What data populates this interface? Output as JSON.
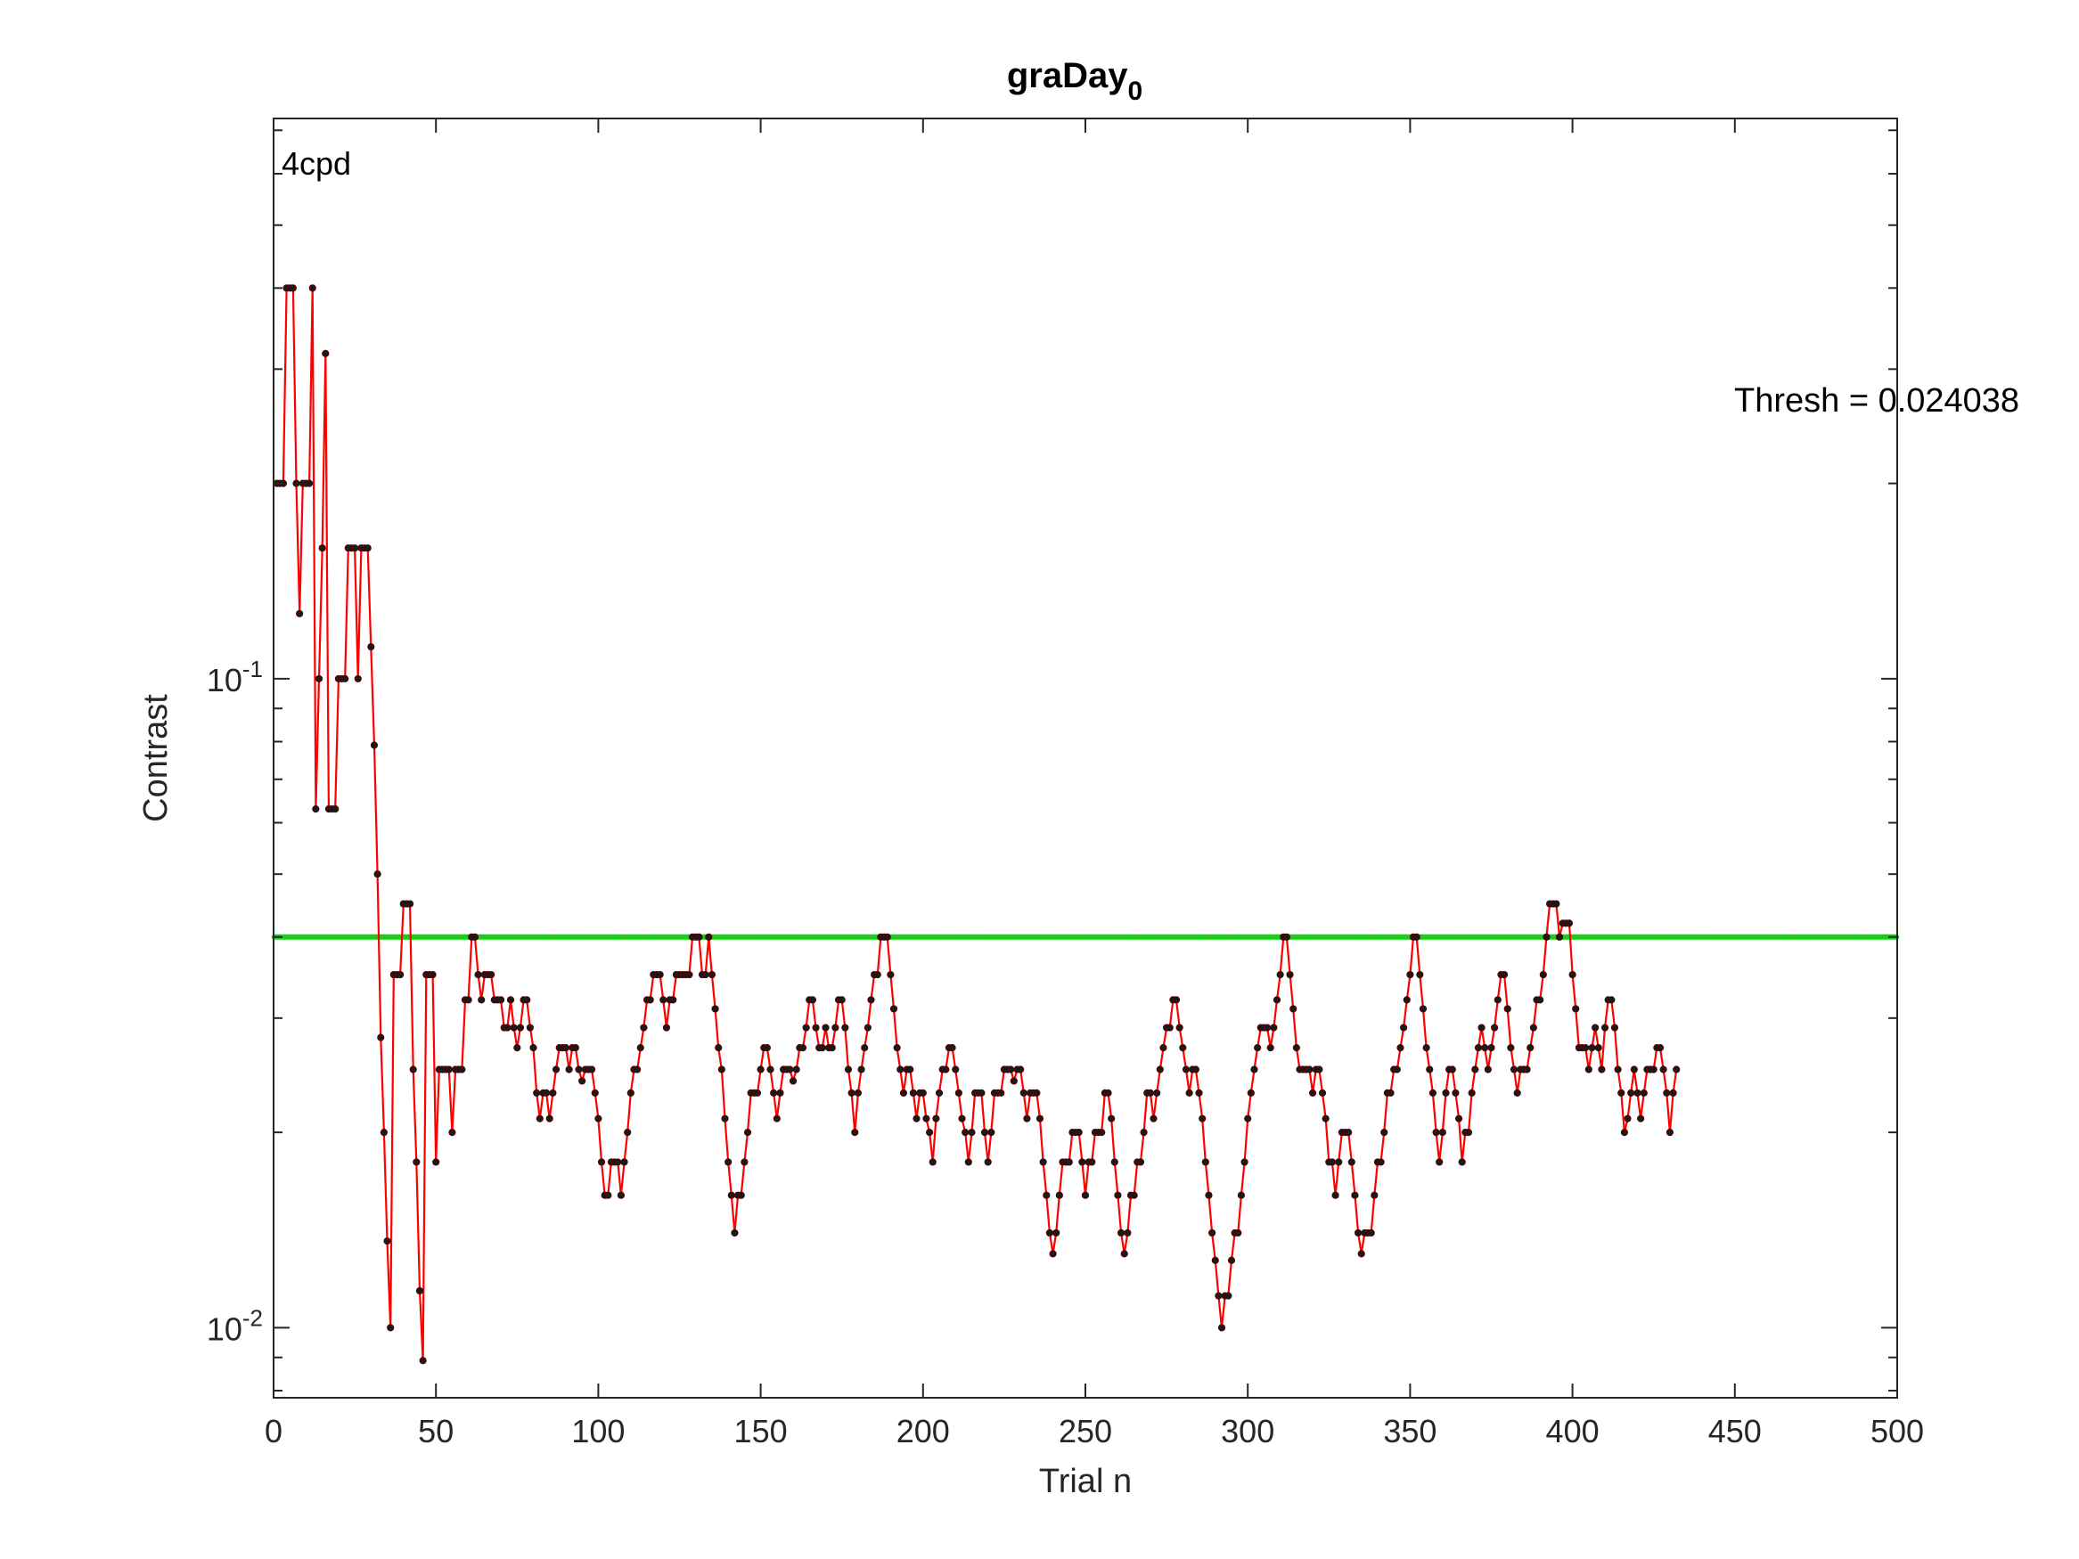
{
  "chart_data": {
    "type": "line",
    "title": "graDay",
    "title_subscript": "0",
    "xlabel": "Trial n",
    "ylabel": "Contrast",
    "annotation": "4cpd",
    "thresh_label": "Thresh = 0.024038",
    "xlim": [
      0,
      500
    ],
    "ylim": [
      0.0078,
      0.73
    ],
    "yscale": "log",
    "xticks": [
      0,
      50,
      100,
      150,
      200,
      250,
      300,
      350,
      400,
      450,
      500
    ],
    "xtick_labels": [
      "0",
      "50",
      "100",
      "150",
      "200",
      "250",
      "300",
      "350",
      "400",
      "450",
      "500"
    ],
    "yticks": [
      0.1,
      0.01
    ],
    "ytick_labels": [
      {
        "base": "10",
        "exp": "-1"
      },
      {
        "base": "10",
        "exp": "-2"
      }
    ],
    "grid": false,
    "colors": {
      "staircase_line": "#ff0000",
      "staircase_marker": "#1a1a1a",
      "threshold_line": "#00e000",
      "threshold_marker": "#33bb33"
    },
    "threshold_level": 0.04,
    "series": [
      {
        "values": [
          0.2,
          0.2,
          0.2,
          0.4,
          0.4,
          0.4,
          0.2,
          0.126,
          0.2,
          0.2,
          0.2,
          0.4,
          0.063,
          0.1,
          0.159,
          0.317,
          0.063,
          0.063,
          0.063,
          0.1,
          0.1,
          0.1,
          0.159,
          0.159,
          0.159,
          0.1,
          0.159,
          0.159,
          0.159,
          0.112,
          0.079,
          0.05,
          0.028,
          0.02,
          0.0136,
          0.01,
          0.035,
          0.035,
          0.035,
          0.045,
          0.045,
          0.045,
          0.025,
          0.018,
          0.0114,
          0.0089,
          0.035,
          0.035,
          0.035,
          0.018,
          0.025,
          0.025,
          0.025,
          0.025,
          0.02,
          0.025,
          0.025,
          0.025,
          0.032,
          0.032,
          0.04,
          0.04,
          0.035,
          0.032,
          0.035,
          0.035,
          0.035,
          0.032,
          0.032,
          0.032,
          0.029,
          0.029,
          0.032,
          0.029,
          0.027,
          0.029,
          0.032,
          0.032,
          0.029,
          0.027,
          0.023,
          0.021,
          0.023,
          0.023,
          0.021,
          0.023,
          0.025,
          0.027,
          0.027,
          0.027,
          0.025,
          0.027,
          0.027,
          0.025,
          0.024,
          0.025,
          0.025,
          0.025,
          0.023,
          0.021,
          0.018,
          0.016,
          0.016,
          0.018,
          0.018,
          0.018,
          0.016,
          0.018,
          0.02,
          0.023,
          0.025,
          0.025,
          0.027,
          0.029,
          0.032,
          0.032,
          0.035,
          0.035,
          0.035,
          0.032,
          0.029,
          0.032,
          0.032,
          0.035,
          0.035,
          0.035,
          0.035,
          0.035,
          0.04,
          0.04,
          0.04,
          0.035,
          0.035,
          0.04,
          0.035,
          0.031,
          0.027,
          0.025,
          0.021,
          0.018,
          0.016,
          0.014,
          0.016,
          0.016,
          0.018,
          0.02,
          0.023,
          0.023,
          0.023,
          0.025,
          0.027,
          0.027,
          0.025,
          0.023,
          0.021,
          0.023,
          0.025,
          0.025,
          0.025,
          0.024,
          0.025,
          0.027,
          0.027,
          0.029,
          0.032,
          0.032,
          0.029,
          0.027,
          0.027,
          0.029,
          0.027,
          0.027,
          0.029,
          0.032,
          0.032,
          0.029,
          0.025,
          0.023,
          0.02,
          0.023,
          0.025,
          0.027,
          0.029,
          0.032,
          0.035,
          0.035,
          0.04,
          0.04,
          0.04,
          0.035,
          0.031,
          0.027,
          0.025,
          0.023,
          0.025,
          0.025,
          0.023,
          0.021,
          0.023,
          0.023,
          0.021,
          0.02,
          0.018,
          0.021,
          0.023,
          0.025,
          0.025,
          0.027,
          0.027,
          0.025,
          0.023,
          0.021,
          0.02,
          0.018,
          0.02,
          0.023,
          0.023,
          0.023,
          0.02,
          0.018,
          0.02,
          0.023,
          0.023,
          0.023,
          0.025,
          0.025,
          0.025,
          0.024,
          0.025,
          0.025,
          0.023,
          0.021,
          0.023,
          0.023,
          0.023,
          0.021,
          0.018,
          0.016,
          0.014,
          0.013,
          0.014,
          0.016,
          0.018,
          0.018,
          0.018,
          0.02,
          0.02,
          0.02,
          0.018,
          0.016,
          0.018,
          0.018,
          0.02,
          0.02,
          0.02,
          0.023,
          0.023,
          0.021,
          0.018,
          0.016,
          0.014,
          0.013,
          0.014,
          0.016,
          0.016,
          0.018,
          0.018,
          0.02,
          0.023,
          0.023,
          0.021,
          0.023,
          0.025,
          0.027,
          0.029,
          0.029,
          0.032,
          0.032,
          0.029,
          0.027,
          0.025,
          0.023,
          0.025,
          0.025,
          0.023,
          0.021,
          0.018,
          0.016,
          0.014,
          0.0127,
          0.0112,
          0.01,
          0.0112,
          0.0112,
          0.0127,
          0.014,
          0.014,
          0.016,
          0.018,
          0.021,
          0.023,
          0.025,
          0.027,
          0.029,
          0.029,
          0.029,
          0.027,
          0.029,
          0.032,
          0.035,
          0.04,
          0.04,
          0.035,
          0.031,
          0.027,
          0.025,
          0.025,
          0.025,
          0.025,
          0.023,
          0.025,
          0.025,
          0.023,
          0.021,
          0.018,
          0.018,
          0.016,
          0.018,
          0.02,
          0.02,
          0.02,
          0.018,
          0.016,
          0.014,
          0.013,
          0.014,
          0.014,
          0.014,
          0.016,
          0.018,
          0.018,
          0.02,
          0.023,
          0.023,
          0.025,
          0.025,
          0.027,
          0.029,
          0.032,
          0.035,
          0.04,
          0.04,
          0.035,
          0.031,
          0.027,
          0.025,
          0.023,
          0.02,
          0.018,
          0.02,
          0.023,
          0.025,
          0.025,
          0.023,
          0.021,
          0.018,
          0.02,
          0.02,
          0.023,
          0.025,
          0.027,
          0.029,
          0.027,
          0.025,
          0.027,
          0.029,
          0.032,
          0.035,
          0.035,
          0.031,
          0.027,
          0.025,
          0.023,
          0.025,
          0.025,
          0.025,
          0.027,
          0.029,
          0.032,
          0.032,
          0.035,
          0.04,
          0.045,
          0.045,
          0.045,
          0.04,
          0.042,
          0.042,
          0.042,
          0.035,
          0.031,
          0.027,
          0.027,
          0.027,
          0.025,
          0.027,
          0.029,
          0.027,
          0.025,
          0.029,
          0.032,
          0.032,
          0.029,
          0.025,
          0.023,
          0.02,
          0.021,
          0.023,
          0.025,
          0.023,
          0.021,
          0.023,
          0.025,
          0.025,
          0.025,
          0.027,
          0.027,
          0.025,
          0.023,
          0.02,
          0.023,
          0.025
        ]
      }
    ]
  }
}
